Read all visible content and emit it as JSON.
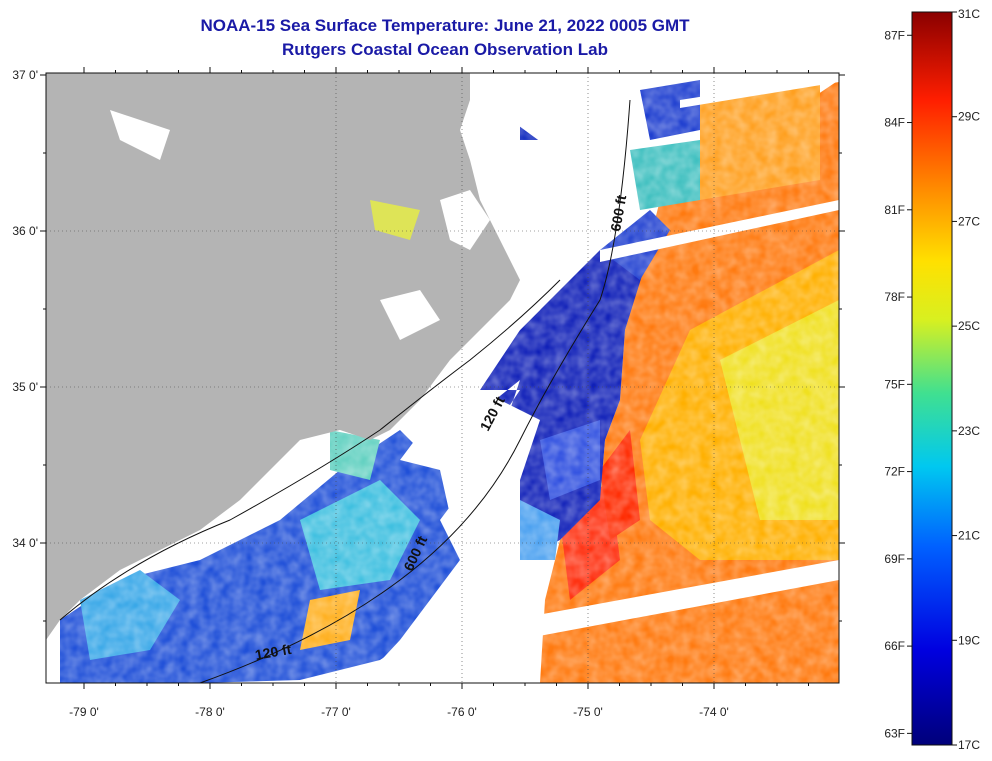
{
  "title_line1": "NOAA-15 Sea Surface Temperature:  June 21, 2022 0005 GMT",
  "title_line2": "Rutgers Coastal Ocean Observation Lab",
  "lat_labels": [
    {
      "deg": 37,
      "text": "37 0'"
    },
    {
      "deg": 36,
      "text": "36 0'"
    },
    {
      "deg": 35,
      "text": "35 0'"
    },
    {
      "deg": 34,
      "text": "34 0'"
    }
  ],
  "lon_labels": [
    {
      "deg": -79,
      "text": "-79 0'"
    },
    {
      "deg": -78,
      "text": "-78 0'"
    },
    {
      "deg": -77,
      "text": "-77 0'"
    },
    {
      "deg": -76,
      "text": "-76 0'"
    },
    {
      "deg": -75,
      "text": "-75 0'"
    },
    {
      "deg": -74,
      "text": "-74 0'"
    }
  ],
  "contour_labels": [
    "120 ft",
    "600 ft",
    "600 ft",
    "120 ft"
  ],
  "colorbar": {
    "celsius": [
      {
        "v": 31,
        "text": "31C"
      },
      {
        "v": 29,
        "text": "29C"
      },
      {
        "v": 27,
        "text": "27C"
      },
      {
        "v": 25,
        "text": "25C"
      },
      {
        "v": 23,
        "text": "23C"
      },
      {
        "v": 21,
        "text": "21C"
      },
      {
        "v": 19,
        "text": "19C"
      },
      {
        "v": 17,
        "text": "17C"
      }
    ],
    "fahrenheit": [
      {
        "v": 87,
        "text": "87F"
      },
      {
        "v": 84,
        "text": "84F"
      },
      {
        "v": 81,
        "text": "81F"
      },
      {
        "v": 78,
        "text": "78F"
      },
      {
        "v": 75,
        "text": "75F"
      },
      {
        "v": 72,
        "text": "72F"
      },
      {
        "v": 69,
        "text": "69F"
      },
      {
        "v": 66,
        "text": "66F"
      },
      {
        "v": 63,
        "text": "63F"
      }
    ],
    "min_c": 17,
    "max_c": 31
  },
  "colors": {
    "land": "#b4b4b4",
    "cloud": "#ffffff",
    "title": "#1a1aa6"
  }
}
